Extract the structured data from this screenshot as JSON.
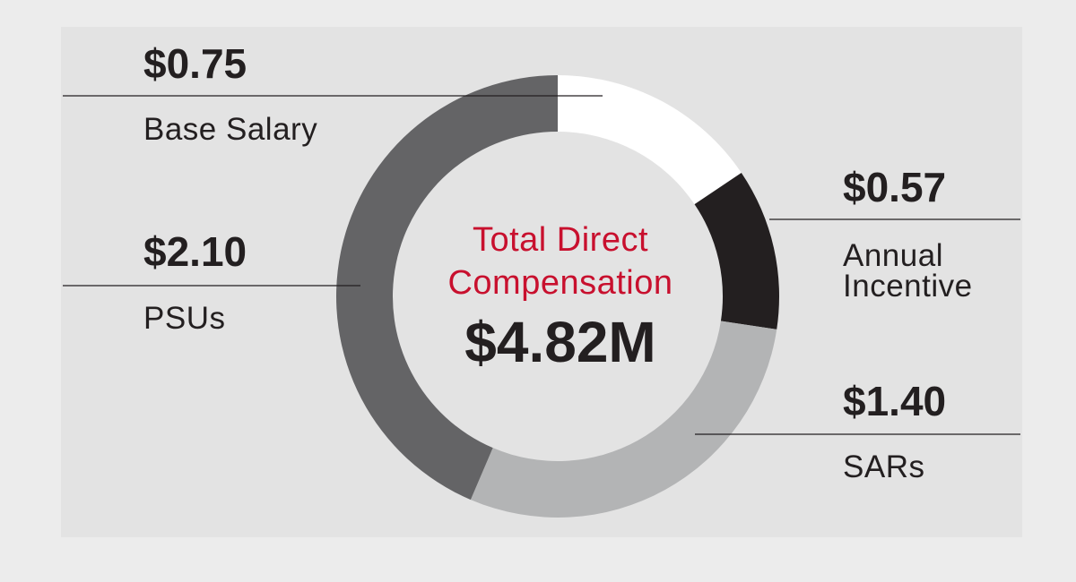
{
  "chart_data": {
    "type": "pie",
    "variant": "donut",
    "center_title": "Total Direct Compensation",
    "center_value": "$4.82M",
    "slices": [
      {
        "label": "Base Salary",
        "value": 0.75,
        "value_label": "$0.75",
        "color": "#ffffff"
      },
      {
        "label": "Annual Incentive",
        "value": 0.57,
        "value_label": "$0.57",
        "color": "#231f20"
      },
      {
        "label": "SARs",
        "value": 1.4,
        "value_label": "$1.40",
        "color": "#b3b4b5"
      },
      {
        "label": "PSUs",
        "value": 2.1,
        "value_label": "$2.10",
        "color": "#646466"
      }
    ],
    "start_angle_deg": 0,
    "direction": "clockwise",
    "colors": {
      "background": "#ececec",
      "panel": "#e3e3e3",
      "accent": "#c8102e",
      "text": "#231f20",
      "leader_line": "#231f20"
    }
  }
}
